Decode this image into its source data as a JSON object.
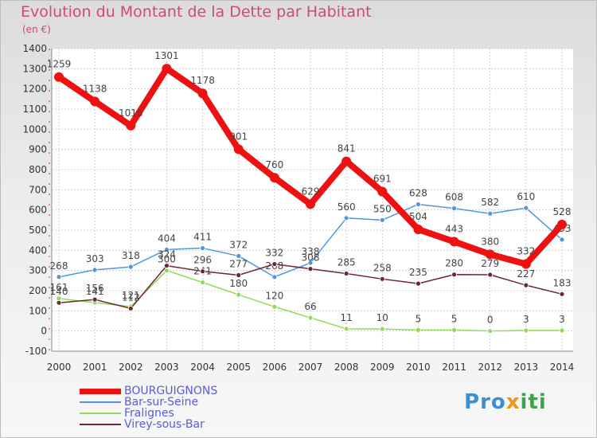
{
  "title": "Evolution du Montant de la Dette par Habitant",
  "subtitle": "(en €)",
  "logo": {
    "letters": [
      {
        "ch": "P",
        "color": "#3a8fd6"
      },
      {
        "ch": "r",
        "color": "#3a8fd6"
      },
      {
        "ch": "o",
        "color": "#3a8fd6"
      },
      {
        "ch": "x",
        "color": "#f0961e"
      },
      {
        "ch": "i",
        "color": "#3aa54a"
      },
      {
        "ch": "t",
        "color": "#3aa54a"
      },
      {
        "ch": "i",
        "color": "#3aa54a"
      }
    ]
  },
  "chart_data": {
    "type": "line",
    "title": "Evolution du Montant de la Dette par Habitant",
    "ylabel": "(en €)",
    "xlabel": "",
    "ylim": [
      -100,
      1400
    ],
    "yticks": [
      -100,
      0,
      100,
      200,
      300,
      400,
      500,
      600,
      700,
      800,
      900,
      1000,
      1100,
      1200,
      1300,
      1400
    ],
    "categories": [
      "2000",
      "2001",
      "2002",
      "2003",
      "2004",
      "2005",
      "2006",
      "2007",
      "2008",
      "2009",
      "2010",
      "2011",
      "2012",
      "2013",
      "2014"
    ],
    "grid": true,
    "legend_position": "bottom-left",
    "series": [
      {
        "name": "BOURGUIGNONS",
        "color": "#ee1111",
        "emphasis": true,
        "values": [
          1259,
          1138,
          1018,
          1301,
          1178,
          901,
          760,
          629,
          841,
          691,
          504,
          443,
          380,
          332,
          528
        ],
        "labels": [
          "1259",
          "1138",
          "1018",
          "1301",
          "1178",
          "901",
          "760",
          "629",
          "841",
          "691",
          "504",
          "443",
          "380",
          "332",
          "528"
        ]
      },
      {
        "name": "Bar-sur-Seine",
        "color": "#4f97d8",
        "values": [
          268,
          303,
          318,
          404,
          411,
          372,
          268,
          338,
          560,
          550,
          628,
          608,
          582,
          610,
          453
        ],
        "labels": [
          "268",
          "303",
          "318",
          "404",
          "411",
          "372",
          "268",
          "338",
          "560",
          "550",
          "628",
          "608",
          "582",
          "610",
          "453"
        ]
      },
      {
        "name": "Fralignes",
        "color": "#92da5c",
        "values": [
          161,
          141,
          121,
          300,
          241,
          180,
          120,
          66,
          11,
          10,
          5,
          5,
          0,
          3,
          3
        ],
        "labels": [
          "161",
          "141",
          "121",
          "300",
          "241",
          "180",
          "120",
          "66",
          "11",
          "10",
          "5",
          "5",
          "0",
          "3",
          "3"
        ]
      },
      {
        "name": "Virey-sous-Bar",
        "color": "#6e2630",
        "values": [
          140,
          156,
          112,
          324,
          296,
          277,
          332,
          308,
          285,
          258,
          235,
          280,
          279,
          227,
          183
        ],
        "labels": [
          "140",
          "156",
          "112",
          "324",
          "296",
          "277",
          "332",
          "308",
          "285",
          "258",
          "235",
          "280",
          "279",
          "227",
          "183"
        ]
      }
    ]
  }
}
